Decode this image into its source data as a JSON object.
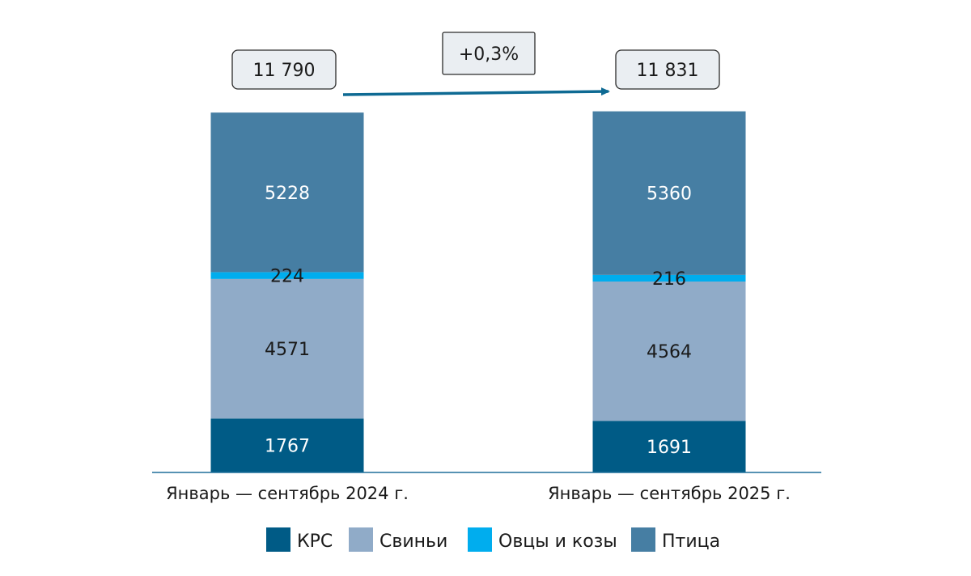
{
  "chart_data": {
    "type": "bar",
    "stacked": true,
    "categories": [
      "Январь — сентябрь 2024 г.",
      "Январь — сентябрь 2025 г."
    ],
    "series": [
      {
        "name": "КРС",
        "color": "#005b86",
        "values": [
          1767,
          1691
        ]
      },
      {
        "name": "Свиньи",
        "color": "#90abc8",
        "values": [
          4571,
          4564
        ]
      },
      {
        "name": "Овцы и козы",
        "color": "#00adee",
        "values": [
          224,
          216
        ]
      },
      {
        "name": "Птица",
        "color": "#467ea3",
        "values": [
          5228,
          5360
        ]
      }
    ],
    "totals": [
      "11 790",
      "11 831"
    ],
    "change_label": "+0,3%",
    "ylim": [
      0,
      11900
    ],
    "grid": false,
    "legend_position": "bottom"
  },
  "colors": {
    "axis": "#1f6f9a",
    "arrow": "#0e6a93",
    "box_fill": "#eaeef2",
    "box_stroke": "#2b2b2b",
    "label_light": "#ffffff",
    "label_dark": "#1a1a1a"
  }
}
